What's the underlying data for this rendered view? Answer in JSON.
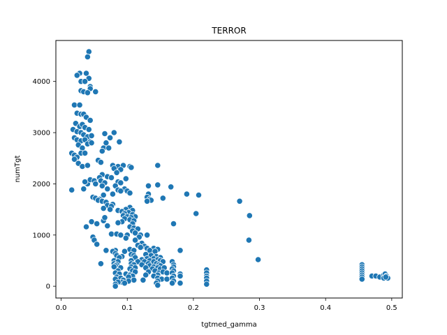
{
  "chart_data": {
    "type": "scatter",
    "title": "TERROR",
    "xlabel": "tgtmed_gamma",
    "ylabel": "numTgt",
    "xlim": [
      -0.008,
      0.516
    ],
    "ylim": [
      -230,
      4800
    ],
    "xticks": [
      0.0,
      0.1,
      0.2,
      0.3,
      0.4,
      0.5
    ],
    "xtick_labels": [
      "0.0",
      "0.1",
      "0.2",
      "0.3",
      "0.4",
      "0.5"
    ],
    "yticks": [
      0,
      1000,
      2000,
      3000,
      4000
    ],
    "ytick_labels": [
      "0",
      "1000",
      "2000",
      "3000",
      "4000"
    ],
    "grid": false,
    "marker_color": "#1f77b4",
    "points": [
      [
        0.042,
        4580
      ],
      [
        0.04,
        4480
      ],
      [
        0.028,
        4160
      ],
      [
        0.038,
        4160
      ],
      [
        0.024,
        4120
      ],
      [
        0.042,
        4060
      ],
      [
        0.03,
        4000
      ],
      [
        0.036,
        4000
      ],
      [
        0.044,
        3900
      ],
      [
        0.044,
        3860
      ],
      [
        0.03,
        3820
      ],
      [
        0.034,
        3800
      ],
      [
        0.04,
        3780
      ],
      [
        0.052,
        3800
      ],
      [
        0.02,
        3540
      ],
      [
        0.028,
        3540
      ],
      [
        0.024,
        3380
      ],
      [
        0.03,
        3360
      ],
      [
        0.034,
        3360
      ],
      [
        0.038,
        3300
      ],
      [
        0.044,
        3240
      ],
      [
        0.022,
        3180
      ],
      [
        0.028,
        3120
      ],
      [
        0.032,
        3160
      ],
      [
        0.036,
        3100
      ],
      [
        0.018,
        3060
      ],
      [
        0.024,
        3020
      ],
      [
        0.03,
        3000
      ],
      [
        0.042,
        3060
      ],
      [
        0.034,
        2960
      ],
      [
        0.04,
        2920
      ],
      [
        0.046,
        2940
      ],
      [
        0.02,
        2900
      ],
      [
        0.024,
        2860
      ],
      [
        0.03,
        2840
      ],
      [
        0.036,
        2860
      ],
      [
        0.044,
        2820
      ],
      [
        0.026,
        2760
      ],
      [
        0.032,
        2700
      ],
      [
        0.04,
        2780
      ],
      [
        0.046,
        2800
      ],
      [
        0.03,
        2600
      ],
      [
        0.036,
        2600
      ],
      [
        0.016,
        2600
      ],
      [
        0.02,
        2560
      ],
      [
        0.024,
        2520
      ],
      [
        0.02,
        2480
      ],
      [
        0.026,
        2400
      ],
      [
        0.032,
        2340
      ],
      [
        0.04,
        2360
      ],
      [
        0.016,
        1880
      ],
      [
        0.034,
        1900
      ],
      [
        0.04,
        2000
      ],
      [
        0.036,
        2040
      ],
      [
        0.044,
        2080
      ],
      [
        0.066,
        2980
      ],
      [
        0.08,
        3000
      ],
      [
        0.074,
        2900
      ],
      [
        0.088,
        2820
      ],
      [
        0.068,
        2800
      ],
      [
        0.064,
        2700
      ],
      [
        0.072,
        2700
      ],
      [
        0.062,
        2640
      ],
      [
        0.056,
        2460
      ],
      [
        0.06,
        2420
      ],
      [
        0.078,
        2360
      ],
      [
        0.086,
        2340
      ],
      [
        0.094,
        2360
      ],
      [
        0.08,
        2300
      ],
      [
        0.09,
        2280
      ],
      [
        0.084,
        2220
      ],
      [
        0.062,
        2180
      ],
      [
        0.07,
        2140
      ],
      [
        0.058,
        2120
      ],
      [
        0.076,
        2120
      ],
      [
        0.098,
        2100
      ],
      [
        0.05,
        2060
      ],
      [
        0.06,
        2060
      ],
      [
        0.086,
        2040
      ],
      [
        0.09,
        2020
      ],
      [
        0.066,
        2020
      ],
      [
        0.052,
        2000
      ],
      [
        0.062,
        1960
      ],
      [
        0.082,
        1960
      ],
      [
        0.096,
        1900
      ],
      [
        0.07,
        1900
      ],
      [
        0.086,
        1880
      ],
      [
        0.09,
        1860
      ],
      [
        0.1,
        1860
      ],
      [
        0.104,
        1820
      ],
      [
        0.078,
        1800
      ],
      [
        0.064,
        1780
      ],
      [
        0.048,
        1740
      ],
      [
        0.052,
        1720
      ],
      [
        0.058,
        1700
      ],
      [
        0.056,
        1680
      ],
      [
        0.062,
        1660
      ],
      [
        0.068,
        1640
      ],
      [
        0.078,
        1600
      ],
      [
        0.07,
        1580
      ],
      [
        0.076,
        1560
      ],
      [
        0.064,
        1520
      ],
      [
        0.104,
        1540
      ],
      [
        0.098,
        1500
      ],
      [
        0.086,
        1480
      ],
      [
        0.092,
        1460
      ],
      [
        0.074,
        1500
      ],
      [
        0.108,
        1480
      ],
      [
        0.102,
        1440
      ],
      [
        0.096,
        1420
      ],
      [
        0.108,
        1400
      ],
      [
        0.094,
        1380
      ],
      [
        0.1,
        1360
      ],
      [
        0.112,
        1360
      ],
      [
        0.106,
        1340
      ],
      [
        0.096,
        1320
      ],
      [
        0.104,
        1300
      ],
      [
        0.11,
        1280
      ],
      [
        0.092,
        1260
      ],
      [
        0.086,
        1240
      ],
      [
        0.108,
        1220
      ],
      [
        0.064,
        1280
      ],
      [
        0.066,
        1340
      ],
      [
        0.046,
        1260
      ],
      [
        0.054,
        1220
      ],
      [
        0.07,
        1180
      ],
      [
        0.038,
        1160
      ],
      [
        0.104,
        1160
      ],
      [
        0.11,
        1140
      ],
      [
        0.116,
        1120
      ],
      [
        0.108,
        1080
      ],
      [
        0.112,
        1040
      ],
      [
        0.1,
        1000
      ],
      [
        0.076,
        1020
      ],
      [
        0.084,
        1020
      ],
      [
        0.09,
        1000
      ],
      [
        0.12,
        1000
      ],
      [
        0.13,
        1000
      ],
      [
        0.118,
        960
      ],
      [
        0.098,
        940
      ],
      [
        0.048,
        960
      ],
      [
        0.05,
        900
      ],
      [
        0.054,
        820
      ],
      [
        0.112,
        900
      ],
      [
        0.122,
        840
      ],
      [
        0.116,
        800
      ],
      [
        0.126,
        780
      ],
      [
        0.12,
        760
      ],
      [
        0.13,
        740
      ],
      [
        0.14,
        740
      ],
      [
        0.146,
        720
      ],
      [
        0.134,
        700
      ],
      [
        0.142,
        680
      ],
      [
        0.104,
        720
      ],
      [
        0.11,
        700
      ],
      [
        0.096,
        680
      ],
      [
        0.082,
        700
      ],
      [
        0.078,
        680
      ],
      [
        0.068,
        700
      ],
      [
        0.082,
        640
      ],
      [
        0.084,
        600
      ],
      [
        0.092,
        580
      ],
      [
        0.088,
        560
      ],
      [
        0.106,
        620
      ],
      [
        0.11,
        600
      ],
      [
        0.112,
        560
      ],
      [
        0.128,
        620
      ],
      [
        0.136,
        600
      ],
      [
        0.144,
        580
      ],
      [
        0.13,
        540
      ],
      [
        0.14,
        540
      ],
      [
        0.15,
        560
      ],
      [
        0.122,
        520
      ],
      [
        0.134,
        500
      ],
      [
        0.146,
        520
      ],
      [
        0.15,
        500
      ],
      [
        0.154,
        480
      ],
      [
        0.14,
        480
      ],
      [
        0.126,
        480
      ],
      [
        0.116,
        480
      ],
      [
        0.106,
        500
      ],
      [
        0.08,
        500
      ],
      [
        0.086,
        480
      ],
      [
        0.06,
        440
      ],
      [
        0.08,
        440
      ],
      [
        0.084,
        420
      ],
      [
        0.106,
        440
      ],
      [
        0.11,
        420
      ],
      [
        0.132,
        440
      ],
      [
        0.144,
        440
      ],
      [
        0.148,
        420
      ],
      [
        0.15,
        400
      ],
      [
        0.134,
        400
      ],
      [
        0.122,
        420
      ],
      [
        0.082,
        400
      ],
      [
        0.09,
        360
      ],
      [
        0.08,
        380
      ],
      [
        0.106,
        380
      ],
      [
        0.112,
        360
      ],
      [
        0.14,
        380
      ],
      [
        0.146,
        360
      ],
      [
        0.15,
        340
      ],
      [
        0.156,
        360
      ],
      [
        0.128,
        360
      ],
      [
        0.138,
        340
      ],
      [
        0.104,
        340
      ],
      [
        0.108,
        300
      ],
      [
        0.112,
        280
      ],
      [
        0.086,
        300
      ],
      [
        0.082,
        260
      ],
      [
        0.088,
        240
      ],
      [
        0.098,
        240
      ],
      [
        0.104,
        220
      ],
      [
        0.132,
        280
      ],
      [
        0.142,
        300
      ],
      [
        0.148,
        260
      ],
      [
        0.154,
        280
      ],
      [
        0.16,
        260
      ],
      [
        0.146,
        220
      ],
      [
        0.14,
        200
      ],
      [
        0.128,
        220
      ],
      [
        0.108,
        200
      ],
      [
        0.102,
        180
      ],
      [
        0.084,
        180
      ],
      [
        0.09,
        160
      ],
      [
        0.082,
        140
      ],
      [
        0.094,
        120
      ],
      [
        0.11,
        120
      ],
      [
        0.124,
        120
      ],
      [
        0.146,
        160
      ],
      [
        0.152,
        140
      ],
      [
        0.16,
        140
      ],
      [
        0.146,
        100
      ],
      [
        0.102,
        100
      ],
      [
        0.092,
        80
      ],
      [
        0.086,
        80
      ],
      [
        0.082,
        40
      ],
      [
        0.096,
        60
      ],
      [
        0.144,
        60
      ],
      [
        0.146,
        20
      ],
      [
        0.082,
        0
      ],
      [
        0.104,
        2340
      ],
      [
        0.106,
        2320
      ],
      [
        0.132,
        1960
      ],
      [
        0.146,
        1980
      ],
      [
        0.166,
        1940
      ],
      [
        0.132,
        1800
      ],
      [
        0.13,
        1740
      ],
      [
        0.134,
        1700
      ],
      [
        0.146,
        2360
      ],
      [
        0.154,
        1720
      ],
      [
        0.136,
        1680
      ],
      [
        0.13,
        1660
      ],
      [
        0.19,
        1800
      ],
      [
        0.208,
        1780
      ],
      [
        0.204,
        1420
      ],
      [
        0.17,
        1220
      ],
      [
        0.18,
        700
      ],
      [
        0.168,
        480
      ],
      [
        0.17,
        420
      ],
      [
        0.17,
        380
      ],
      [
        0.168,
        340
      ],
      [
        0.17,
        300
      ],
      [
        0.168,
        260
      ],
      [
        0.17,
        200
      ],
      [
        0.168,
        160
      ],
      [
        0.17,
        100
      ],
      [
        0.168,
        60
      ],
      [
        0.18,
        240
      ],
      [
        0.18,
        200
      ],
      [
        0.18,
        60
      ],
      [
        0.22,
        320
      ],
      [
        0.22,
        260
      ],
      [
        0.22,
        200
      ],
      [
        0.22,
        160
      ],
      [
        0.22,
        100
      ],
      [
        0.22,
        40
      ],
      [
        0.27,
        1660
      ],
      [
        0.285,
        1380
      ],
      [
        0.284,
        900
      ],
      [
        0.298,
        520
      ],
      [
        0.455,
        420
      ],
      [
        0.455,
        380
      ],
      [
        0.455,
        340
      ],
      [
        0.455,
        300
      ],
      [
        0.455,
        260
      ],
      [
        0.455,
        220
      ],
      [
        0.455,
        180
      ],
      [
        0.455,
        140
      ],
      [
        0.47,
        200
      ],
      [
        0.476,
        200
      ],
      [
        0.482,
        180
      ],
      [
        0.488,
        220
      ],
      [
        0.49,
        240
      ],
      [
        0.492,
        200
      ],
      [
        0.494,
        160
      ],
      [
        0.488,
        160
      ],
      [
        0.491,
        180
      ]
    ]
  }
}
